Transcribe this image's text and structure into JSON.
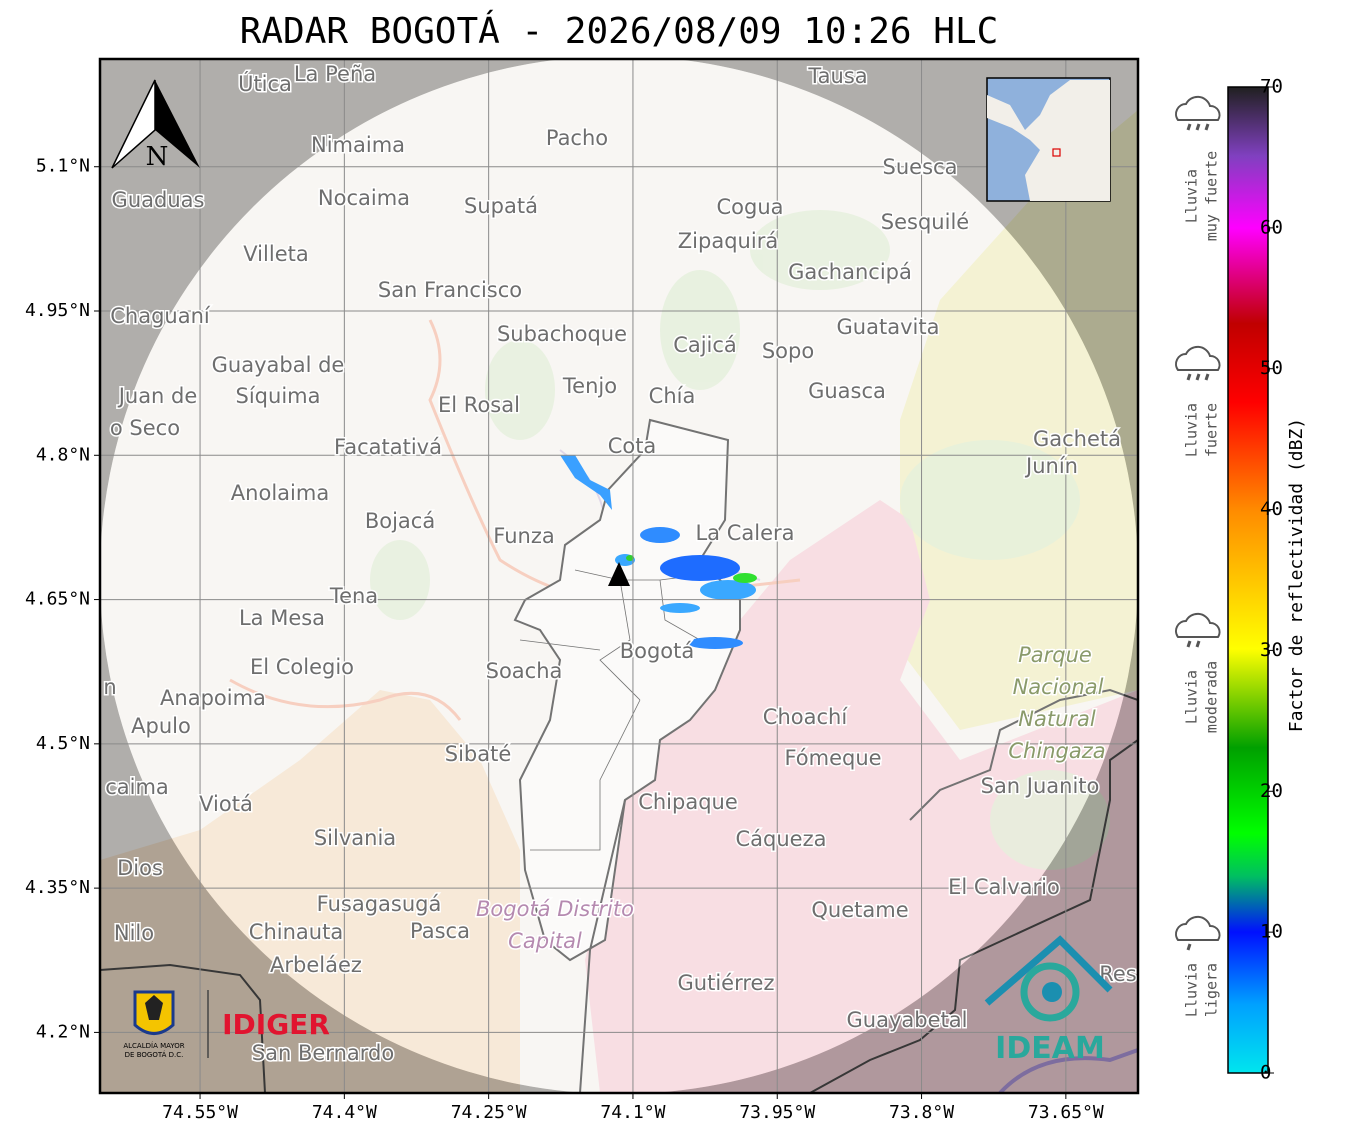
{
  "title": "RADAR BOGOTÁ - 2026/08/09 10:26 HLC",
  "map": {
    "xlim": [
      -74.654,
      -73.575
    ],
    "ylim": [
      4.137,
      5.212
    ],
    "grid": true,
    "north": "N",
    "xticks": [
      {
        "value": -74.55,
        "label": "74.55°W"
      },
      {
        "value": -74.4,
        "label": "74.4°W"
      },
      {
        "value": -74.25,
        "label": "74.25°W"
      },
      {
        "value": -74.1,
        "label": "74.1°W"
      },
      {
        "value": -73.95,
        "label": "73.95°W"
      },
      {
        "value": -73.8,
        "label": "73.8°W"
      },
      {
        "value": -73.65,
        "label": "73.65°W"
      }
    ],
    "yticks": [
      {
        "value": 5.1,
        "label": "5.1°N"
      },
      {
        "value": 4.95,
        "label": "4.95°N"
      },
      {
        "value": 4.8,
        "label": "4.8°N"
      },
      {
        "value": 4.65,
        "label": "4.65°N"
      },
      {
        "value": 4.5,
        "label": "4.5°N"
      },
      {
        "value": 4.35,
        "label": "4.35°N"
      },
      {
        "value": 4.2,
        "label": "4.2°N"
      }
    ],
    "places": [
      "Útica",
      "La Peña",
      "Tausa",
      "Pacho",
      "Nimaima",
      "Guaduas",
      "Nocaima",
      "Supatá",
      "Cogua",
      "Suesca",
      "Sesquilé",
      "Zipaquirá",
      "Villeta",
      "Gachancipá",
      "San Francisco",
      "Chaguaní",
      "Guatavita",
      "Subachoque",
      "Cajicá",
      "Sopo",
      "Guayabal de",
      "Síquima",
      "Tenjo",
      "Chía",
      "Guasca",
      "Juan de",
      "o Seco",
      "El Rosal",
      "Cota",
      "Facatativá",
      "Gachetá",
      "Junín",
      "Anolaima",
      "Bojacá",
      "Funza",
      "La Calera",
      "Tena",
      "La Mesa",
      "El Colegio",
      "Soacha",
      "Bogotá",
      "Parque",
      "Nacional",
      "Natural",
      "Chingaza",
      "Anapoima",
      "Apulo",
      "Choachí",
      "Sibaté",
      "Fómeque",
      "San Juanito",
      "caima",
      "Viotá",
      "Chipaque",
      "Silvania",
      "Cáqueza",
      "Dios",
      "El Calvario",
      "Fusagasugá",
      "Bogotá Distrito",
      "Quetame",
      "Nilo",
      "Chinauta",
      "Pasca",
      "Capital",
      "Arbeláez",
      "Gutiérrez",
      "Res",
      "Guayabetal",
      "San Bernardo",
      "n"
    ]
  },
  "colorbar": {
    "label": "Factor de reflectividad (dBZ)",
    "lim": [
      0,
      70
    ],
    "ticks": [
      0,
      10,
      20,
      30,
      40,
      50,
      60,
      70
    ]
  },
  "rain_levels": [
    [
      "Lluvia",
      "muy fuerte"
    ],
    [
      "Lluvia",
      "fuerte"
    ],
    [
      "Lluvia",
      "moderada"
    ],
    [
      "Lluvia",
      "ligera"
    ]
  ],
  "logos": {
    "alcaldia": [
      "ALCALDÍA MAYOR",
      "DE BOGOTÁ D.C."
    ],
    "idiger": "IDIGER",
    "ideam": "IDEAM"
  }
}
